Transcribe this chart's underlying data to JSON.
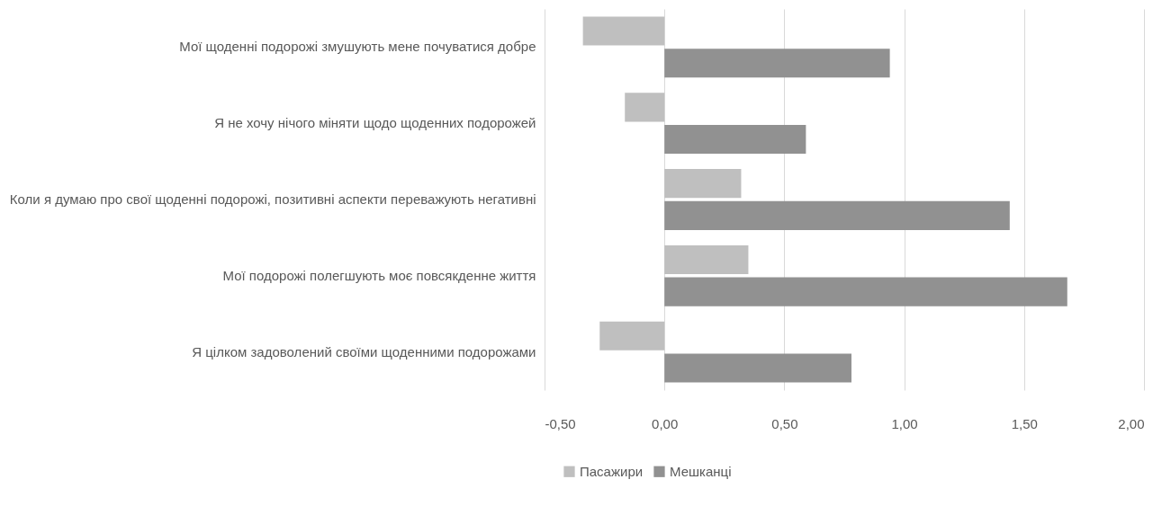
{
  "chart_data": {
    "type": "bar",
    "orientation": "horizontal",
    "categories": [
      "Мої щоденні подорожі змушують мене почуватися добре",
      "Я не хочу нічого міняти щодо щоденних подорожей",
      "Коли я думаю про свої щоденні подорожі, позитивні аспекти переважують негативні",
      "Мої подорожі полегшують моє повсякденне життя",
      "Я цілком задоволений своїми щоденними подорожами"
    ],
    "series": [
      {
        "name": "Пасажири",
        "color": "#bfbfbf",
        "values": [
          -0.34,
          -0.165,
          0.32,
          0.35,
          -0.27
        ]
      },
      {
        "name": "Мешканці",
        "color": "#919191",
        "values": [
          0.94,
          0.59,
          1.44,
          1.68,
          0.78
        ]
      }
    ],
    "xlim": [
      -0.5,
      2.0
    ],
    "xticks": [
      {
        "value": -0.5,
        "label": "-0,50"
      },
      {
        "value": 0,
        "label": "0,00"
      },
      {
        "value": 0.5,
        "label": "0,50"
      },
      {
        "value": 1.0,
        "label": "1,00"
      },
      {
        "value": 1.5,
        "label": "1,50"
      },
      {
        "value": 2.0,
        "label": "2,00"
      }
    ],
    "grid": "x",
    "legend": "bottom"
  }
}
